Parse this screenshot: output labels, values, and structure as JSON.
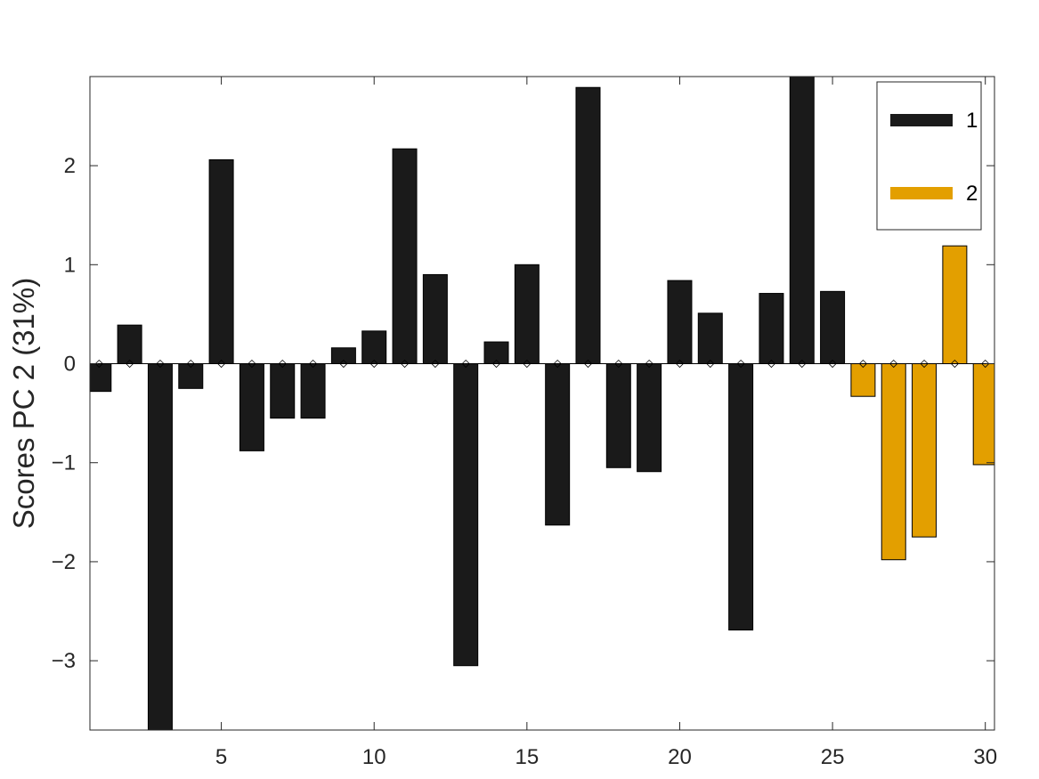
{
  "chart_data": {
    "type": "bar",
    "title": "",
    "xlabel": "",
    "ylabel": "Scores PC 2 (31%)",
    "xlim": [
      0.7,
      30.3
    ],
    "ylim": [
      -3.7,
      2.9
    ],
    "x_ticks": [
      5,
      10,
      15,
      20,
      25,
      30
    ],
    "x_tick_labels": [
      "5",
      "10",
      "15",
      "20",
      "25",
      "30"
    ],
    "y_ticks": [
      -3,
      -2,
      -1,
      0,
      1,
      2
    ],
    "y_tick_labels": [
      "−3",
      "−2",
      "−1",
      "0",
      "1",
      "2"
    ],
    "grid": false,
    "legend_position": "top-right",
    "colors": {
      "1": "#1a1a1a",
      "2": "#e39f00"
    },
    "series": [
      {
        "name": "1",
        "x": [
          1,
          2,
          3,
          4,
          5,
          6,
          7,
          8,
          9,
          10,
          11,
          12,
          13,
          14,
          15,
          16,
          17,
          18,
          19,
          20,
          21,
          22,
          23,
          24,
          25
        ],
        "values": [
          -0.28,
          0.39,
          -3.9,
          -0.25,
          2.06,
          -0.88,
          -0.55,
          -0.55,
          0.16,
          0.33,
          2.17,
          0.9,
          -3.05,
          0.22,
          1.0,
          -1.63,
          2.79,
          -1.05,
          -1.09,
          0.84,
          0.51,
          -2.69,
          0.71,
          2.95,
          0.73
        ]
      },
      {
        "name": "2",
        "x": [
          26,
          27,
          28,
          29,
          30
        ],
        "values": [
          -0.33,
          -1.98,
          -1.75,
          1.19,
          -1.02
        ]
      }
    ]
  }
}
